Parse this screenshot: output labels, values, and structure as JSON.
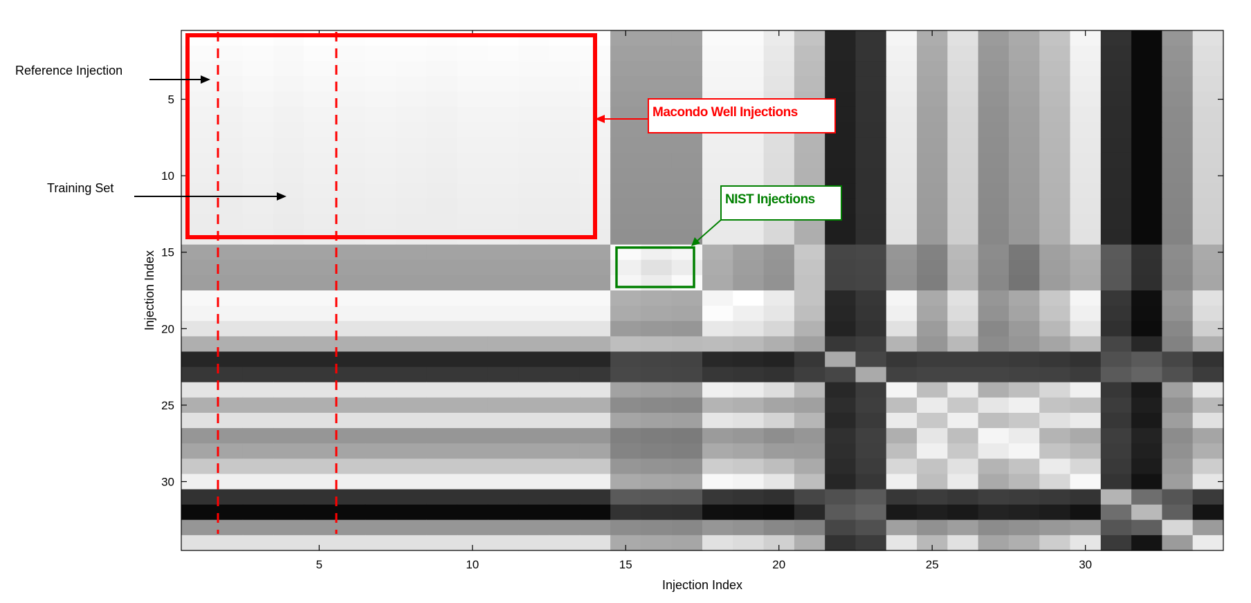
{
  "chart_data": {
    "type": "heatmap",
    "colormap": "gray",
    "xlabel": "Injection Index",
    "ylabel": "Injection Index",
    "xlim": [
      0.5,
      34.5
    ],
    "ylim": [
      0.5,
      34.5
    ],
    "y_reversed": true,
    "xticks": [
      5,
      10,
      15,
      20,
      25,
      30
    ],
    "yticks": [
      5,
      10,
      15,
      20,
      25,
      30
    ],
    "n": 34,
    "row_profiles": [
      [
        255,
        255,
        255,
        255,
        255,
        255,
        255,
        255,
        255,
        255,
        255,
        255,
        255,
        255,
        163,
        163,
        163,
        250,
        250,
        235,
        195,
        35,
        52,
        245,
        173,
        225,
        155,
        170,
        195,
        245,
        50,
        10,
        150,
        225
      ],
      [
        252,
        252,
        252,
        252,
        252,
        252,
        252,
        252,
        252,
        252,
        252,
        252,
        252,
        252,
        160,
        160,
        160,
        248,
        248,
        232,
        190,
        35,
        52,
        242,
        170,
        222,
        152,
        168,
        192,
        242,
        48,
        10,
        147,
        222
      ],
      [
        250,
        250,
        250,
        250,
        250,
        250,
        250,
        250,
        250,
        250,
        250,
        250,
        250,
        250,
        158,
        158,
        158,
        246,
        246,
        230,
        188,
        34,
        51,
        240,
        168,
        220,
        150,
        166,
        190,
        240,
        47,
        10,
        145,
        220
      ],
      [
        248,
        248,
        248,
        248,
        248,
        248,
        248,
        248,
        248,
        248,
        248,
        248,
        248,
        248,
        156,
        156,
        156,
        245,
        245,
        228,
        186,
        34,
        51,
        238,
        166,
        218,
        148,
        164,
        188,
        238,
        46,
        10,
        143,
        218
      ],
      [
        246,
        246,
        246,
        246,
        246,
        246,
        246,
        246,
        246,
        246,
        246,
        246,
        246,
        246,
        154,
        154,
        154,
        243,
        243,
        226,
        184,
        33,
        50,
        236,
        164,
        216,
        146,
        162,
        186,
        236,
        45,
        10,
        141,
        216
      ],
      [
        244,
        244,
        244,
        244,
        244,
        244,
        244,
        244,
        244,
        244,
        244,
        244,
        244,
        244,
        152,
        152,
        152,
        241,
        241,
        224,
        182,
        33,
        50,
        234,
        162,
        214,
        144,
        160,
        184,
        234,
        44,
        10,
        139,
        214
      ],
      [
        243,
        243,
        243,
        243,
        243,
        243,
        243,
        243,
        243,
        243,
        243,
        243,
        243,
        243,
        151,
        151,
        151,
        240,
        240,
        223,
        181,
        32,
        49,
        233,
        161,
        213,
        143,
        159,
        183,
        233,
        44,
        10,
        138,
        213
      ],
      [
        242,
        242,
        242,
        242,
        242,
        242,
        242,
        242,
        242,
        242,
        242,
        242,
        242,
        242,
        150,
        150,
        150,
        239,
        239,
        222,
        180,
        32,
        49,
        232,
        160,
        212,
        142,
        158,
        182,
        232,
        43,
        10,
        137,
        212
      ],
      [
        241,
        241,
        241,
        241,
        241,
        241,
        241,
        241,
        241,
        241,
        241,
        241,
        241,
        241,
        149,
        149,
        149,
        238,
        238,
        221,
        179,
        32,
        49,
        231,
        159,
        211,
        141,
        157,
        181,
        231,
        43,
        10,
        136,
        211
      ],
      [
        240,
        240,
        240,
        240,
        240,
        240,
        240,
        240,
        240,
        240,
        240,
        240,
        240,
        240,
        148,
        148,
        148,
        237,
        237,
        220,
        178,
        31,
        48,
        230,
        158,
        210,
        140,
        156,
        180,
        230,
        42,
        10,
        135,
        210
      ],
      [
        239,
        239,
        239,
        239,
        239,
        239,
        239,
        239,
        239,
        239,
        239,
        239,
        239,
        239,
        147,
        147,
        147,
        236,
        236,
        219,
        177,
        31,
        48,
        229,
        157,
        209,
        139,
        155,
        179,
        229,
        42,
        10,
        134,
        209
      ],
      [
        238,
        238,
        238,
        238,
        238,
        238,
        238,
        238,
        238,
        238,
        238,
        238,
        238,
        238,
        146,
        146,
        146,
        235,
        235,
        218,
        176,
        31,
        48,
        228,
        156,
        208,
        138,
        154,
        178,
        228,
        41,
        10,
        133,
        208
      ],
      [
        237,
        237,
        237,
        237,
        237,
        237,
        237,
        237,
        237,
        237,
        237,
        237,
        237,
        237,
        145,
        145,
        145,
        234,
        234,
        217,
        175,
        30,
        47,
        227,
        155,
        207,
        137,
        153,
        177,
        227,
        41,
        10,
        132,
        207
      ],
      [
        236,
        236,
        236,
        236,
        236,
        236,
        236,
        236,
        236,
        236,
        236,
        236,
        236,
        236,
        144,
        144,
        144,
        233,
        233,
        216,
        174,
        30,
        47,
        226,
        154,
        206,
        136,
        152,
        176,
        226,
        40,
        10,
        131,
        206
      ],
      [
        163,
        163,
        163,
        163,
        163,
        163,
        163,
        163,
        163,
        163,
        163,
        163,
        163,
        163,
        250,
        240,
        246,
        175,
        160,
        150,
        200,
        70,
        72,
        150,
        130,
        185,
        140,
        120,
        160,
        175,
        90,
        50,
        140,
        170
      ],
      [
        160,
        160,
        160,
        160,
        160,
        160,
        160,
        160,
        160,
        160,
        160,
        160,
        160,
        160,
        240,
        225,
        236,
        172,
        158,
        148,
        196,
        68,
        70,
        148,
        128,
        182,
        138,
        118,
        158,
        172,
        88,
        48,
        138,
        168
      ],
      [
        158,
        158,
        158,
        158,
        158,
        158,
        158,
        158,
        158,
        158,
        158,
        158,
        158,
        158,
        246,
        236,
        250,
        170,
        156,
        146,
        194,
        67,
        69,
        146,
        126,
        180,
        136,
        116,
        156,
        170,
        87,
        47,
        136,
        166
      ],
      [
        248,
        248,
        248,
        248,
        248,
        248,
        248,
        248,
        248,
        248,
        248,
        248,
        248,
        248,
        175,
        172,
        170,
        245,
        255,
        235,
        195,
        40,
        55,
        245,
        170,
        225,
        150,
        168,
        200,
        245,
        55,
        15,
        150,
        225
      ],
      [
        244,
        244,
        244,
        244,
        244,
        244,
        244,
        244,
        244,
        244,
        244,
        244,
        244,
        244,
        171,
        168,
        166,
        252,
        240,
        230,
        190,
        38,
        53,
        240,
        166,
        220,
        146,
        164,
        196,
        240,
        52,
        14,
        146,
        220
      ],
      [
        228,
        228,
        228,
        228,
        228,
        228,
        228,
        228,
        228,
        228,
        228,
        228,
        228,
        228,
        155,
        152,
        150,
        232,
        228,
        215,
        178,
        35,
        50,
        225,
        156,
        208,
        136,
        154,
        184,
        228,
        48,
        12,
        136,
        208
      ],
      [
        175,
        175,
        175,
        175,
        175,
        175,
        175,
        175,
        175,
        175,
        175,
        175,
        175,
        175,
        190,
        188,
        186,
        188,
        185,
        175,
        160,
        55,
        62,
        180,
        150,
        185,
        140,
        150,
        165,
        185,
        70,
        40,
        130,
        175
      ],
      [
        38,
        38,
        38,
        38,
        38,
        38,
        38,
        38,
        38,
        38,
        38,
        38,
        38,
        38,
        70,
        68,
        67,
        40,
        38,
        35,
        55,
        170,
        70,
        55,
        60,
        60,
        60,
        58,
        55,
        50,
        80,
        90,
        70,
        50
      ],
      [
        55,
        55,
        55,
        55,
        55,
        55,
        55,
        55,
        55,
        55,
        55,
        55,
        55,
        55,
        72,
        70,
        69,
        55,
        53,
        50,
        62,
        70,
        170,
        65,
        68,
        68,
        68,
        66,
        65,
        60,
        90,
        100,
        80,
        60
      ],
      [
        228,
        228,
        228,
        228,
        228,
        228,
        228,
        228,
        228,
        228,
        228,
        228,
        228,
        228,
        162,
        159,
        157,
        240,
        236,
        222,
        185,
        40,
        60,
        245,
        190,
        235,
        175,
        190,
        215,
        240,
        55,
        25,
        160,
        230
      ],
      [
        175,
        175,
        175,
        175,
        175,
        175,
        175,
        175,
        175,
        175,
        175,
        175,
        175,
        175,
        140,
        137,
        135,
        180,
        176,
        165,
        160,
        45,
        62,
        190,
        235,
        200,
        230,
        240,
        195,
        190,
        60,
        30,
        145,
        185
      ],
      [
        225,
        225,
        225,
        225,
        225,
        225,
        225,
        225,
        225,
        225,
        225,
        225,
        225,
        225,
        165,
        162,
        160,
        230,
        226,
        212,
        182,
        40,
        58,
        235,
        200,
        240,
        190,
        200,
        225,
        235,
        55,
        25,
        158,
        225
      ],
      [
        150,
        150,
        150,
        150,
        150,
        150,
        150,
        150,
        150,
        150,
        150,
        150,
        150,
        150,
        128,
        125,
        123,
        155,
        151,
        142,
        150,
        48,
        64,
        175,
        230,
        190,
        245,
        235,
        180,
        170,
        62,
        35,
        140,
        165
      ],
      [
        165,
        165,
        165,
        165,
        165,
        165,
        165,
        165,
        165,
        165,
        165,
        165,
        165,
        165,
        132,
        129,
        127,
        170,
        166,
        156,
        155,
        46,
        63,
        190,
        240,
        200,
        235,
        245,
        195,
        185,
        60,
        32,
        145,
        175
      ],
      [
        200,
        200,
        200,
        200,
        200,
        200,
        200,
        200,
        200,
        200,
        200,
        200,
        200,
        200,
        150,
        147,
        145,
        205,
        201,
        190,
        170,
        43,
        60,
        215,
        195,
        225,
        180,
        195,
        235,
        215,
        57,
        28,
        152,
        205
      ],
      [
        240,
        240,
        240,
        240,
        240,
        240,
        240,
        240,
        240,
        240,
        240,
        240,
        240,
        240,
        170,
        167,
        165,
        248,
        244,
        230,
        190,
        38,
        55,
        240,
        190,
        235,
        170,
        185,
        215,
        248,
        52,
        18,
        158,
        230
      ],
      [
        50,
        50,
        50,
        50,
        50,
        50,
        50,
        50,
        50,
        50,
        50,
        50,
        50,
        50,
        90,
        88,
        87,
        55,
        52,
        48,
        70,
        80,
        90,
        55,
        60,
        55,
        62,
        60,
        57,
        52,
        180,
        110,
        85,
        58
      ],
      [
        10,
        10,
        10,
        10,
        10,
        10,
        10,
        10,
        10,
        10,
        10,
        10,
        10,
        10,
        50,
        48,
        47,
        15,
        14,
        12,
        40,
        90,
        100,
        25,
        30,
        25,
        35,
        32,
        28,
        18,
        110,
        185,
        95,
        20
      ],
      [
        150,
        150,
        150,
        150,
        150,
        150,
        150,
        150,
        150,
        150,
        150,
        150,
        150,
        150,
        140,
        138,
        136,
        150,
        146,
        136,
        130,
        70,
        80,
        160,
        145,
        158,
        140,
        145,
        152,
        158,
        85,
        95,
        215,
        155
      ],
      [
        225,
        225,
        225,
        225,
        225,
        225,
        225,
        225,
        225,
        225,
        225,
        225,
        225,
        225,
        170,
        168,
        166,
        225,
        220,
        208,
        175,
        50,
        60,
        230,
        185,
        225,
        165,
        175,
        205,
        230,
        58,
        20,
        155,
        235
      ]
    ],
    "column_shading": [
      0.98,
      0.96,
      0.99,
      0.95,
      1.0,
      0.97,
      0.99,
      0.98,
      0.96,
      0.99,
      1.0,
      0.97,
      0.98,
      0.99,
      1.0,
      1.0,
      1.0,
      1.0,
      1.0,
      1.0,
      1.0,
      1.0,
      1.0,
      1.0,
      1.0,
      1.0,
      1.0,
      1.0,
      1.0,
      1.0,
      1.0,
      1.0,
      1.0,
      1.0
    ],
    "annotations": [
      {
        "type": "text",
        "text": "Reference Injection",
        "arrow_to": {
          "x": 1.6,
          "y": 2
        }
      },
      {
        "type": "text",
        "text": "Training Set",
        "arrow_to": {
          "x": 4.2,
          "y": 11.2
        }
      },
      {
        "type": "box",
        "color": "#ff0000",
        "label": "Macondo Well Injections",
        "x_range": [
          0.7,
          14.3
        ],
        "y_range": [
          0.6,
          13.7
        ]
      },
      {
        "type": "box",
        "color": "#008000",
        "label": "NIST Injections",
        "x_range": [
          14.7,
          17.3
        ],
        "y_range": [
          14.3,
          16.8
        ]
      },
      {
        "type": "vline",
        "color": "#ff0000",
        "style": "dashed",
        "x": 1.7
      },
      {
        "type": "vline",
        "color": "#ff0000",
        "style": "dashed",
        "x": 5.6
      }
    ]
  }
}
